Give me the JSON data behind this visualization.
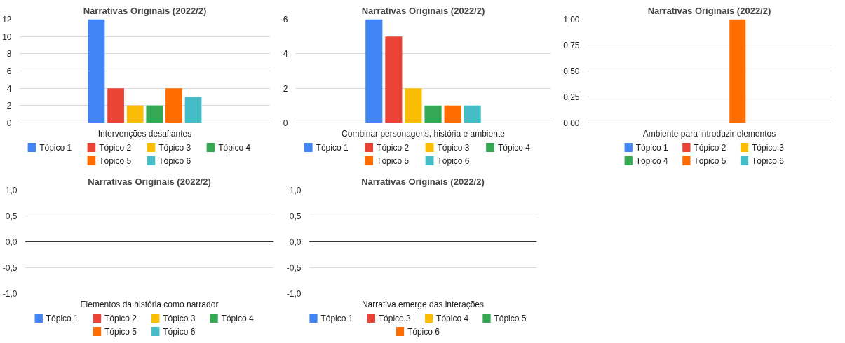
{
  "chart_data": [
    {
      "type": "bar",
      "title": "Narrativas Originais (2022/2)",
      "categories": [
        "Intervenções desafiantes"
      ],
      "ylim": [
        0,
        12
      ],
      "yticks": [
        0,
        2,
        4,
        6,
        8,
        10,
        12
      ],
      "grid": "y",
      "legend": "bottom",
      "series": [
        {
          "name": "Tópico 1",
          "color": "#4285f4",
          "values": [
            12
          ]
        },
        {
          "name": "Tópico 2",
          "color": "#ea4335",
          "values": [
            4
          ]
        },
        {
          "name": "Tópico 3",
          "color": "#fbbc04",
          "values": [
            2
          ]
        },
        {
          "name": "Tópico 4",
          "color": "#34a853",
          "values": [
            2
          ]
        },
        {
          "name": "Tópico 5",
          "color": "#ff6d01",
          "values": [
            4
          ]
        },
        {
          "name": "Tópico 6",
          "color": "#46bdc6",
          "values": [
            3
          ]
        }
      ]
    },
    {
      "type": "bar",
      "title": "Narrativas Originais (2022/2)",
      "categories": [
        "Combinar personagens, história e ambiente"
      ],
      "ylim": [
        0,
        6
      ],
      "yticks": [
        0,
        2,
        4,
        6
      ],
      "grid": "y",
      "legend": "bottom",
      "series": [
        {
          "name": "Tópico 1",
          "color": "#4285f4",
          "values": [
            6
          ]
        },
        {
          "name": "Tópico 2",
          "color": "#ea4335",
          "values": [
            5
          ]
        },
        {
          "name": "Tópico 3",
          "color": "#fbbc04",
          "values": [
            2
          ]
        },
        {
          "name": "Tópico 4",
          "color": "#34a853",
          "values": [
            1
          ]
        },
        {
          "name": "Tópico 5",
          "color": "#ff6d01",
          "values": [
            1
          ]
        },
        {
          "name": "Tópico 6",
          "color": "#46bdc6",
          "values": [
            1
          ]
        }
      ]
    },
    {
      "type": "bar",
      "title": "Narrativas Originais (2022/2)",
      "categories": [
        "Ambiente para introduzir elementos"
      ],
      "ylim": [
        0,
        1
      ],
      "yticks": [
        {
          "value": 0,
          "label": "0,00"
        },
        {
          "value": 0.25,
          "label": "0,25"
        },
        {
          "value": 0.5,
          "label": "0,50"
        },
        {
          "value": 0.75,
          "label": "0,75"
        },
        {
          "value": 1,
          "label": "1,00"
        }
      ],
      "grid": "y",
      "legend": "bottom",
      "series": [
        {
          "name": "Tópico 1",
          "color": "#4285f4",
          "values": [
            0
          ]
        },
        {
          "name": "Tópico 2",
          "color": "#ea4335",
          "values": [
            0
          ]
        },
        {
          "name": "Tópico 3",
          "color": "#fbbc04",
          "values": [
            0
          ]
        },
        {
          "name": "Tópico 4",
          "color": "#34a853",
          "values": [
            0
          ]
        },
        {
          "name": "Tópico 5",
          "color": "#ff6d01",
          "values": [
            1
          ]
        },
        {
          "name": "Tópico 6",
          "color": "#46bdc6",
          "values": [
            0
          ]
        }
      ]
    },
    {
      "type": "bar",
      "title": "Narrativas Originais (2022/2)",
      "categories": [
        "Elementos da história como narrador"
      ],
      "ylim": [
        -1,
        1
      ],
      "yticks": [
        {
          "value": -1,
          "label": "-1,0"
        },
        {
          "value": -0.5,
          "label": "-0,5"
        },
        {
          "value": 0,
          "label": "0,0"
        },
        {
          "value": 0.5,
          "label": "0,5"
        },
        {
          "value": 1,
          "label": "1,0"
        }
      ],
      "grid": "y",
      "legend": "bottom",
      "series": [
        {
          "name": "Tópico 1",
          "color": "#4285f4",
          "values": [
            0
          ]
        },
        {
          "name": "Tópico 2",
          "color": "#ea4335",
          "values": [
            0
          ]
        },
        {
          "name": "Tópico 3",
          "color": "#fbbc04",
          "values": [
            0
          ]
        },
        {
          "name": "Tópico 4",
          "color": "#34a853",
          "values": [
            0
          ]
        },
        {
          "name": "Tópico 5",
          "color": "#ff6d01",
          "values": [
            0
          ]
        },
        {
          "name": "Tópico 6",
          "color": "#46bdc6",
          "values": [
            0
          ]
        }
      ]
    },
    {
      "type": "bar",
      "title": "Narrativas Originais (2022/2)",
      "categories": [
        "Narrativa emerge das interações"
      ],
      "ylim": [
        -1,
        1
      ],
      "yticks": [
        {
          "value": -1,
          "label": "-1,0"
        },
        {
          "value": -0.5,
          "label": "-0,5"
        },
        {
          "value": 0,
          "label": "0,0"
        },
        {
          "value": 0.5,
          "label": "0,5"
        },
        {
          "value": 1,
          "label": "1,0"
        }
      ],
      "grid": "y",
      "legend": "bottom",
      "series": [
        {
          "name": "Tópico 1",
          "color": "#4285f4",
          "values": [
            0
          ]
        },
        {
          "name": "Tópico 3",
          "color": "#ea4335",
          "values": [
            0
          ]
        },
        {
          "name": "Tópico 4",
          "color": "#fbbc04",
          "values": [
            0
          ]
        },
        {
          "name": "Tópico 5",
          "color": "#34a853",
          "values": [
            0
          ]
        },
        {
          "name": "Tópico 6",
          "color": "#ff6d01",
          "values": [
            0
          ]
        }
      ]
    }
  ]
}
